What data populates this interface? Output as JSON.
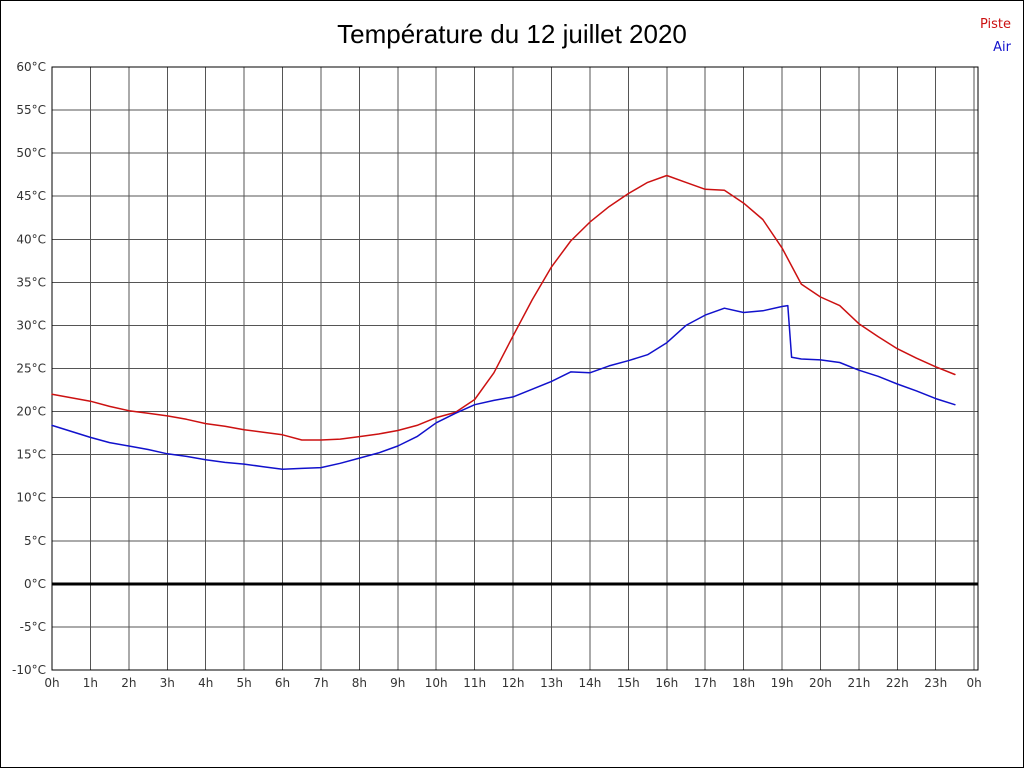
{
  "chart_data": {
    "type": "line",
    "title": "Température du 12 juillet 2020",
    "xlabel": "",
    "ylabel": "",
    "grid": true,
    "legend_position": "top-right",
    "x_axis": {
      "min": 0,
      "max": 24.1,
      "tick_step": 1,
      "tick_labels": [
        "0h",
        "1h",
        "2h",
        "3h",
        "4h",
        "5h",
        "6h",
        "7h",
        "8h",
        "9h",
        "10h",
        "11h",
        "12h",
        "13h",
        "14h",
        "15h",
        "16h",
        "17h",
        "18h",
        "19h",
        "20h",
        "21h",
        "22h",
        "23h",
        "0h"
      ]
    },
    "y_axis": {
      "min": -10,
      "max": 60,
      "tick_step": 5,
      "unit": "°C"
    },
    "zero_line": {
      "value": 0,
      "color": "#000000",
      "width": 3
    },
    "grid_color": "#555555",
    "series": [
      {
        "name": "Piste",
        "color": "#cc1111",
        "x": [
          0,
          0.5,
          1,
          1.5,
          2,
          2.5,
          3,
          3.5,
          4,
          4.5,
          5,
          5.5,
          6,
          6.5,
          7,
          7.5,
          8,
          8.5,
          9,
          9.5,
          10,
          10.5,
          11,
          11.5,
          12,
          12.5,
          13,
          13.5,
          14,
          14.5,
          15,
          15.5,
          16,
          16.5,
          17,
          17.5,
          18,
          18.5,
          19,
          19.5,
          20,
          20.5,
          21,
          21.5,
          22,
          22.5,
          23,
          23.5
        ],
        "values": [
          22,
          21.6,
          21.2,
          20.6,
          20.1,
          19.8,
          19.5,
          19.1,
          18.6,
          18.3,
          17.9,
          17.6,
          17.3,
          16.7,
          16.7,
          16.8,
          17.1,
          17.4,
          17.8,
          18.4,
          19.3,
          19.9,
          21.4,
          24.5,
          28.8,
          33,
          36.8,
          39.8,
          42,
          43.8,
          45.3,
          46.6,
          47.4,
          46.6,
          45.8,
          45.7,
          44.2,
          42.3,
          39,
          34.8,
          33.3,
          32.3,
          30.2,
          28.7,
          27.3,
          26.2,
          25.2,
          24.3
        ]
      },
      {
        "name": "Air",
        "color": "#1111cc",
        "x": [
          0,
          0.5,
          1,
          1.5,
          2,
          2.5,
          3,
          3.5,
          4,
          4.5,
          5,
          5.5,
          6,
          6.5,
          7,
          7.5,
          8,
          8.5,
          9,
          9.5,
          10,
          10.5,
          11,
          11.5,
          12,
          12.5,
          13,
          13.5,
          14,
          14.5,
          15,
          15.5,
          16,
          16.5,
          17,
          17.5,
          18,
          18.5,
          19,
          19.15,
          19.25,
          19.5,
          20,
          20.5,
          21,
          21.5,
          22,
          22.5,
          23,
          23.5
        ],
        "values": [
          18.4,
          17.7,
          17,
          16.4,
          16,
          15.6,
          15.1,
          14.8,
          14.4,
          14.1,
          13.9,
          13.6,
          13.3,
          13.4,
          13.5,
          14,
          14.6,
          15.2,
          16,
          17.1,
          18.7,
          19.8,
          20.8,
          21.3,
          21.7,
          22.6,
          23.5,
          24.6,
          24.5,
          25.3,
          25.9,
          26.6,
          28,
          30,
          31.2,
          32,
          31.5,
          31.7,
          32.2,
          32.3,
          26.3,
          26.1,
          26,
          25.7,
          24.8,
          24.1,
          23.2,
          22.4,
          21.5,
          20.8
        ]
      }
    ]
  }
}
